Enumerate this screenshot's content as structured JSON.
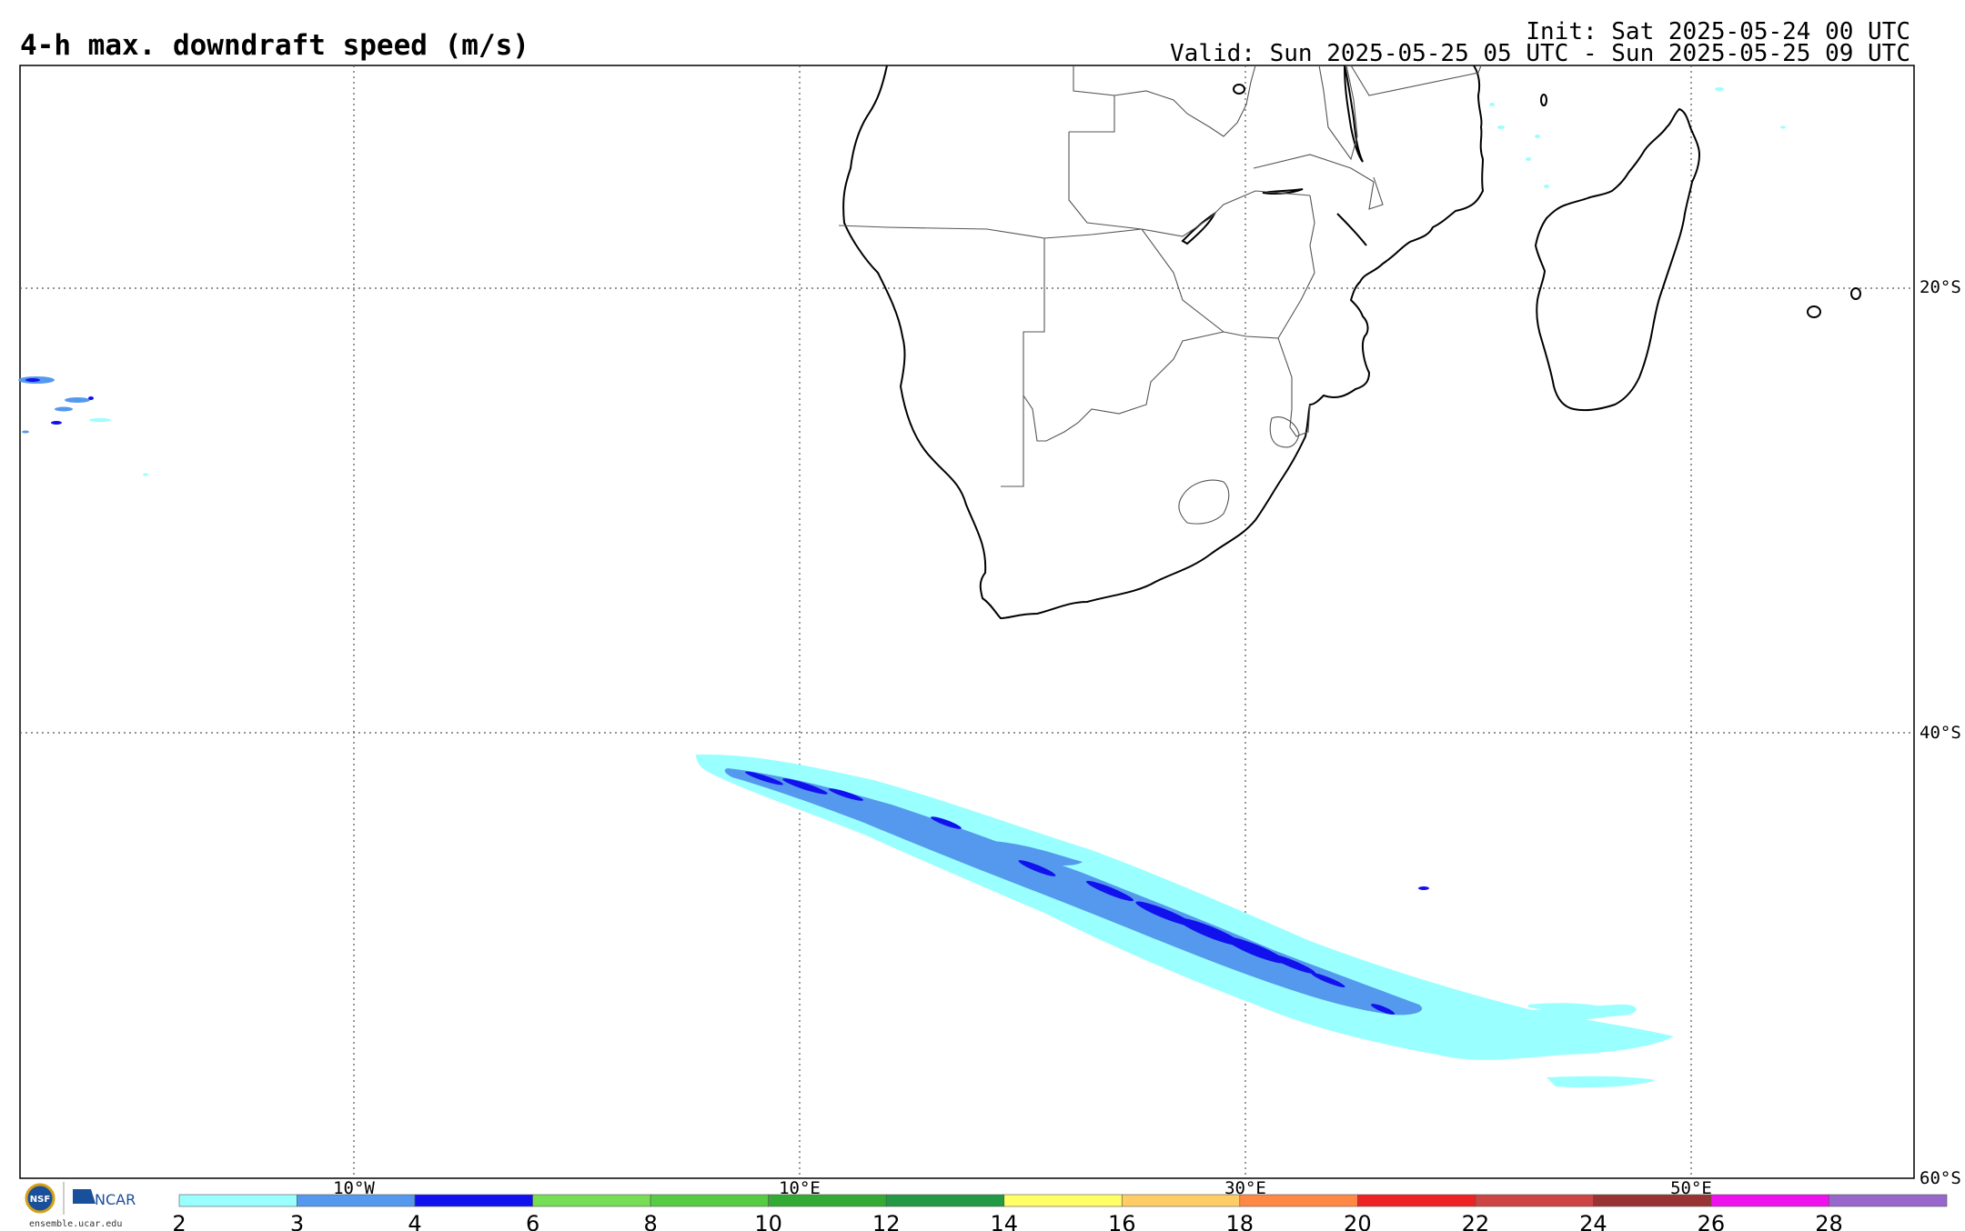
{
  "header": {
    "title": "4-h max. downdraft speed (m/s)",
    "init": "Init: Sat 2025-05-24 00 UTC",
    "valid": "Valid: Sun 2025-05-25 05 UTC - Sun 2025-05-25 09 UTC"
  },
  "axes": {
    "lon_labels": [
      "10°W",
      "10°E",
      "30°E",
      "50°E"
    ],
    "lat_labels": [
      "20°S",
      "40°S",
      "60°S"
    ]
  },
  "colorbar": {
    "ticks": [
      "2",
      "3",
      "4",
      "6",
      "8",
      "10",
      "12",
      "14",
      "16",
      "18",
      "20",
      "22",
      "24",
      "26",
      "28"
    ],
    "colors": [
      "#99ffff",
      "#5599ee",
      "#1111ee",
      "#77dd55",
      "#55cc44",
      "#33aa33",
      "#229944",
      "#ffff66",
      "#ffcc66",
      "#ff8844",
      "#ee2222",
      "#cc4444",
      "#993333",
      "#ee11ee",
      "#9966cc"
    ]
  },
  "logo": {
    "agency": "NSF",
    "org": "NCAR",
    "url": "ensemble.ucar.edu"
  }
}
